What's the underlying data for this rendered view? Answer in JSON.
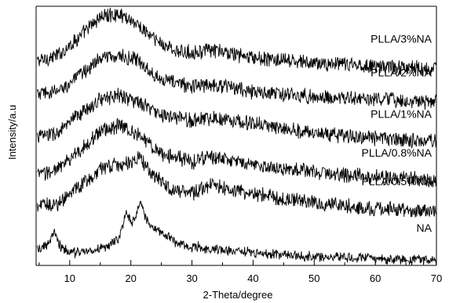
{
  "chart_data": {
    "type": "line",
    "title": "",
    "xlabel": "2-Theta/degree",
    "ylabel": "Intensity/a.u",
    "xlim": [
      4.5,
      70
    ],
    "ylim": [
      0,
      100
    ],
    "x_ticks": [
      10,
      20,
      30,
      40,
      50,
      60,
      70
    ],
    "grid": false,
    "legend": "inline labels at right",
    "series": [
      {
        "name": "PLLA/3%NA",
        "baseline": 78,
        "points": [
          [
            5,
            79
          ],
          [
            8,
            81
          ],
          [
            12,
            89
          ],
          [
            15,
            96
          ],
          [
            18,
            97
          ],
          [
            20,
            95
          ],
          [
            24,
            87
          ],
          [
            28,
            82
          ],
          [
            33,
            83
          ],
          [
            36,
            82
          ],
          [
            40,
            80
          ],
          [
            50,
            78
          ],
          [
            60,
            77
          ],
          [
            70,
            76
          ]
        ]
      },
      {
        "name": "PLLA/2%NA",
        "baseline": 65,
        "points": [
          [
            5,
            66
          ],
          [
            8,
            67
          ],
          [
            12,
            74
          ],
          [
            15,
            80
          ],
          [
            18,
            81
          ],
          [
            21,
            79
          ],
          [
            25,
            72
          ],
          [
            30,
            69
          ],
          [
            33,
            70
          ],
          [
            36,
            69
          ],
          [
            40,
            67
          ],
          [
            50,
            65
          ],
          [
            60,
            64
          ],
          [
            70,
            63
          ]
        ]
      },
      {
        "name": "PLLA/1%NA",
        "baseline": 49,
        "points": [
          [
            5,
            50
          ],
          [
            8,
            51
          ],
          [
            12,
            59
          ],
          [
            15,
            64
          ],
          [
            18,
            66
          ],
          [
            21,
            63
          ],
          [
            25,
            58
          ],
          [
            30,
            56
          ],
          [
            33,
            57
          ],
          [
            37,
            56
          ],
          [
            42,
            54
          ],
          [
            50,
            51
          ],
          [
            60,
            49
          ],
          [
            70,
            48
          ]
        ]
      },
      {
        "name": "PLLA/0.8%NA",
        "baseline": 34,
        "points": [
          [
            5,
            35
          ],
          [
            8,
            37
          ],
          [
            12,
            45
          ],
          [
            15,
            52
          ],
          [
            18,
            54
          ],
          [
            21,
            51
          ],
          [
            25,
            43
          ],
          [
            30,
            40
          ],
          [
            33,
            42
          ],
          [
            37,
            40
          ],
          [
            42,
            38
          ],
          [
            50,
            36
          ],
          [
            60,
            34
          ],
          [
            70,
            33
          ]
        ]
      },
      {
        "name": "PLLA/0.5%NA",
        "baseline": 23,
        "points": [
          [
            5,
            23
          ],
          [
            8,
            24
          ],
          [
            12,
            31
          ],
          [
            15,
            37
          ],
          [
            18,
            39
          ],
          [
            20,
            40
          ],
          [
            21.5,
            42
          ],
          [
            23,
            36
          ],
          [
            27,
            29
          ],
          [
            30,
            28
          ],
          [
            33,
            31
          ],
          [
            37,
            29
          ],
          [
            42,
            27
          ],
          [
            50,
            24
          ],
          [
            60,
            22
          ],
          [
            70,
            21
          ]
        ]
      },
      {
        "name": "NA",
        "baseline": 5,
        "points": [
          [
            5,
            6
          ],
          [
            6.5,
            8
          ],
          [
            7.5,
            13
          ],
          [
            8.5,
            7
          ],
          [
            10,
            5
          ],
          [
            12,
            5
          ],
          [
            16,
            7
          ],
          [
            18,
            10
          ],
          [
            19.3,
            21
          ],
          [
            20.2,
            16
          ],
          [
            21.6,
            24
          ],
          [
            22.5,
            18
          ],
          [
            24,
            14
          ],
          [
            28,
            8
          ],
          [
            35,
            6
          ],
          [
            45,
            4
          ],
          [
            55,
            3
          ],
          [
            70,
            2
          ]
        ]
      }
    ]
  }
}
